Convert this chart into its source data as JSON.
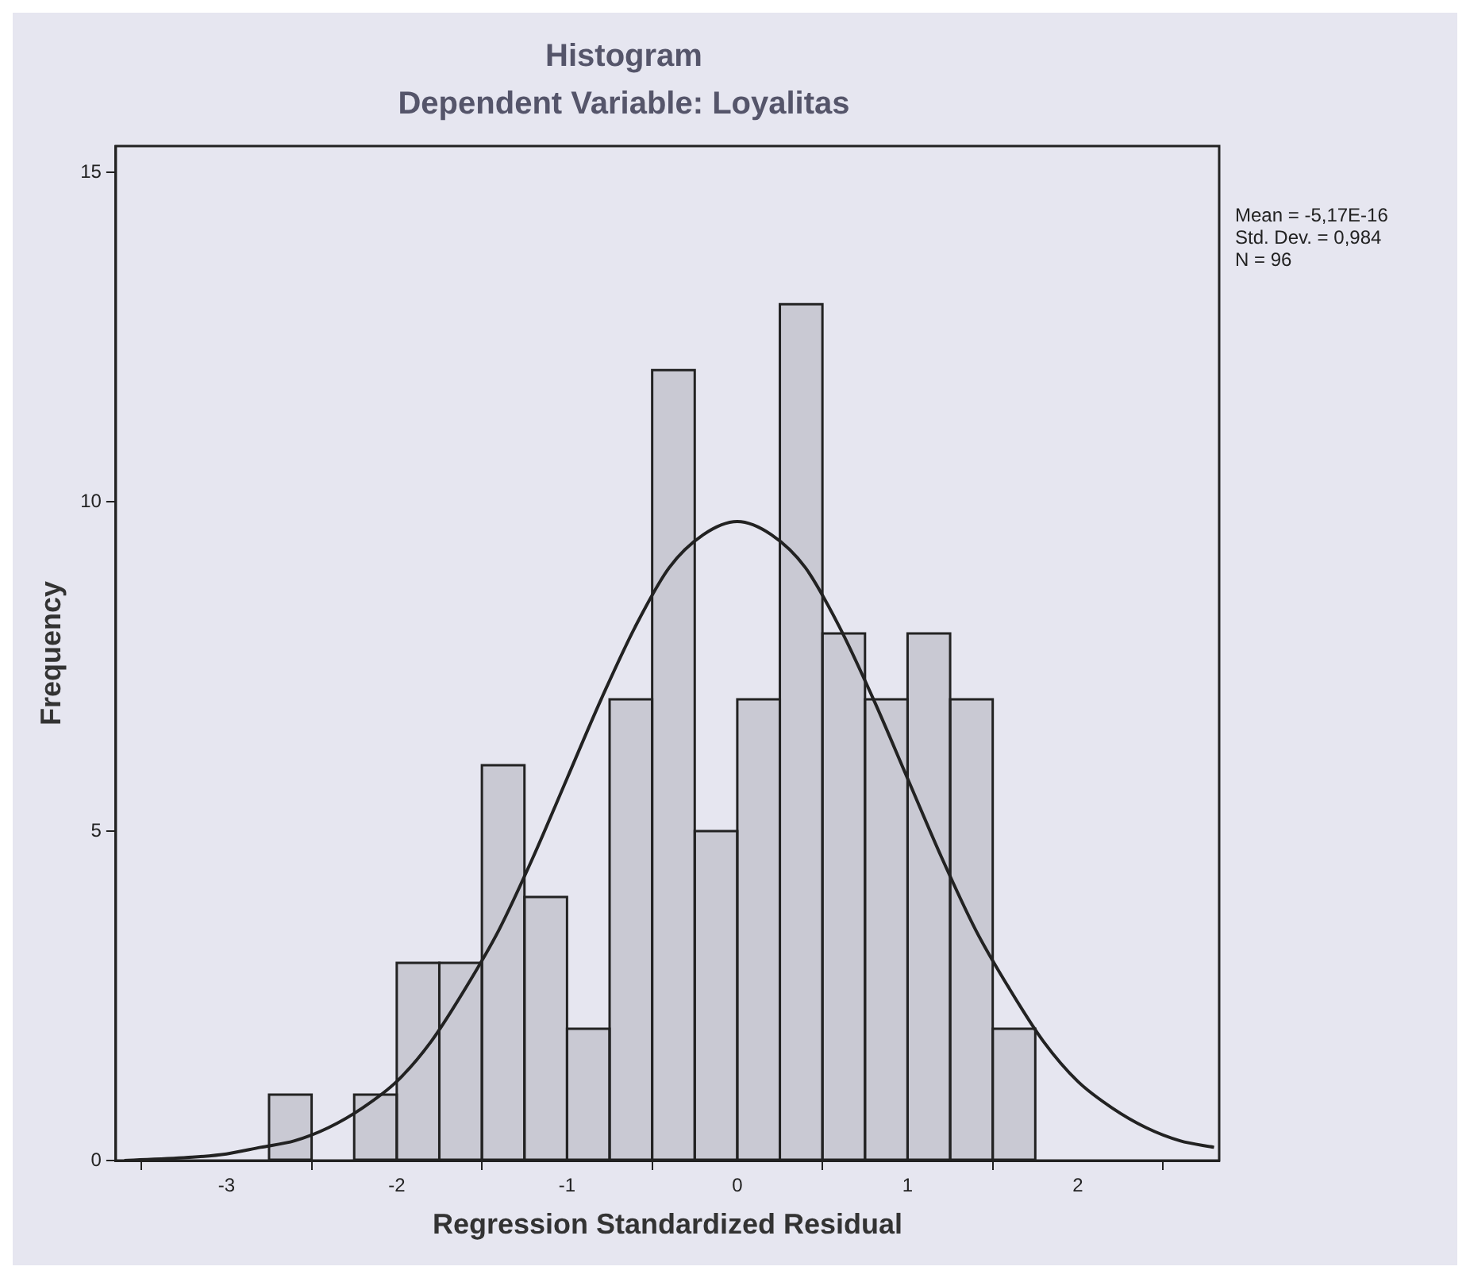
{
  "chart_data": {
    "type": "histogram",
    "title": "Histogram",
    "subtitle": "Dependent Variable: Loyalitas",
    "xlabel": "Regression Standardized Residual",
    "ylabel": "Frequency",
    "bins": [
      -2.75,
      -2.5,
      -2.25,
      -2.0,
      -1.75,
      -1.5,
      -1.25,
      -1.0,
      -0.75,
      -0.5,
      -0.25,
      0.0,
      0.25,
      0.5,
      0.75,
      1.0,
      1.25,
      1.5,
      1.75
    ],
    "values": [
      1,
      0,
      1,
      3,
      3,
      6,
      4,
      2,
      7,
      12,
      5,
      7,
      13,
      8,
      7,
      8,
      7,
      2
    ],
    "color": "#c9c9d3",
    "series": [
      {
        "type": "line",
        "color": "#222222",
        "x": [
          -3.6,
          -3.2,
          -3.0,
          -2.8,
          -2.6,
          -2.4,
          -2.2,
          -2.0,
          -1.8,
          -1.6,
          -1.4,
          -1.2,
          -1.0,
          -0.8,
          -0.6,
          -0.4,
          -0.2,
          0.0,
          0.2,
          0.4,
          0.6,
          0.8,
          1.0,
          1.2,
          1.4,
          1.6,
          1.8,
          2.0,
          2.2,
          2.4,
          2.6,
          2.8
        ],
        "values": [
          0.0,
          0.05,
          0.1,
          0.2,
          0.3,
          0.5,
          0.8,
          1.2,
          1.8,
          2.6,
          3.5,
          4.6,
          5.8,
          7.0,
          8.1,
          9.0,
          9.5,
          9.7,
          9.5,
          9.0,
          8.1,
          7.0,
          5.8,
          4.6,
          3.5,
          2.6,
          1.8,
          1.2,
          0.8,
          0.5,
          0.3,
          0.2
        ]
      }
    ],
    "xlim": [
      -3.65,
      2.83
    ],
    "ylim": [
      0,
      15.4
    ],
    "xticks": [
      -3,
      -2,
      -1,
      0,
      1,
      2
    ],
    "yticks": [
      0,
      5,
      10,
      15
    ],
    "annotations": [
      "Mean = -5,17E-16",
      "Std. Dev. = 0,984",
      "N = 96"
    ],
    "grid": false,
    "legend": false,
    "marker": "none",
    "line_style": "solid"
  }
}
